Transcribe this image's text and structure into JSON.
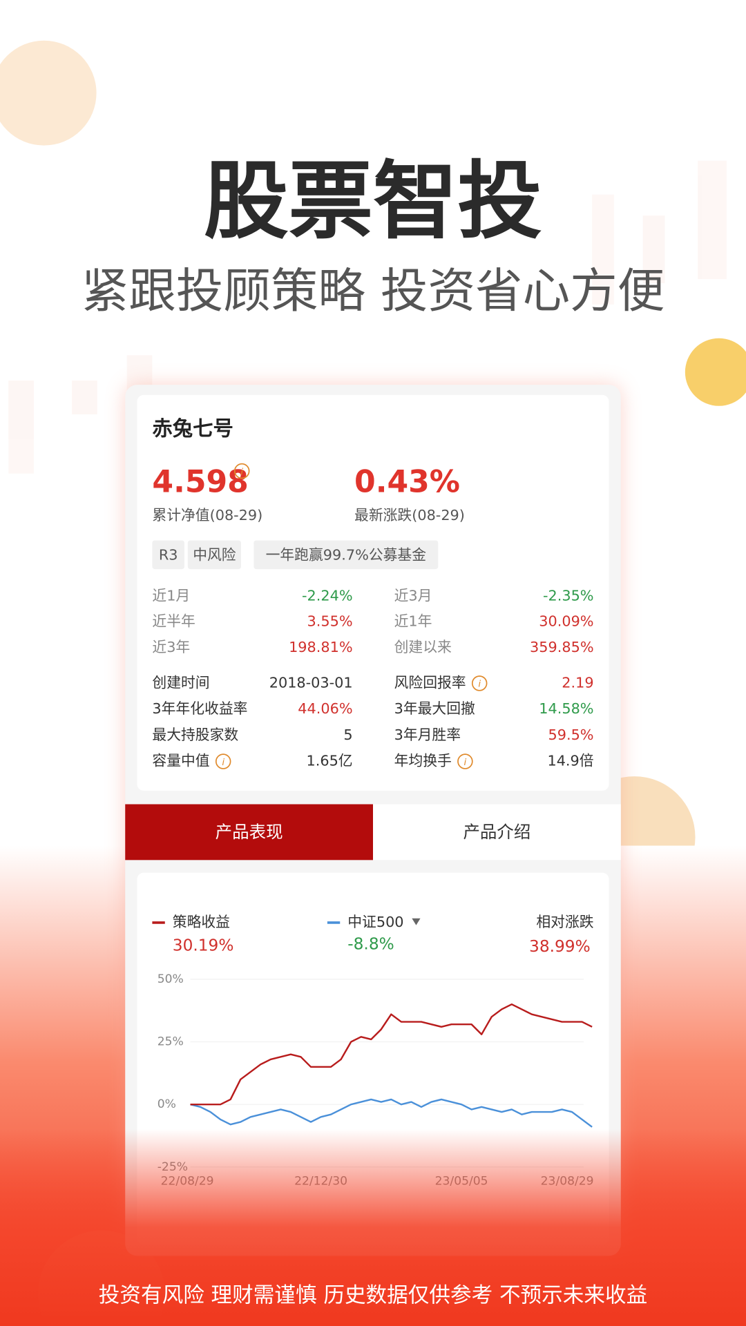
{
  "header": {
    "title": "股票智投",
    "subtitle": "紧跟投顾策略 投资省心方便"
  },
  "product": {
    "name": "赤兔七号",
    "nav": "4.598",
    "nav_label": "累计净值(08-29)",
    "change": "0.43%",
    "change_label": "最新涨跌(08-29)",
    "tags": [
      "R3",
      "中风险",
      "一年跑赢99.7%公募基金"
    ]
  },
  "returns": [
    {
      "label": "近1月",
      "value": "-2.24%",
      "color": "#2e9a4a"
    },
    {
      "label": "近3月",
      "value": "-2.35%",
      "color": "#2e9a4a"
    },
    {
      "label": "近半年",
      "value": "3.55%",
      "color": "#d0302c"
    },
    {
      "label": "近1年",
      "value": "30.09%",
      "color": "#d0302c"
    },
    {
      "label": "近3年",
      "value": "198.81%",
      "color": "#d0302c"
    },
    {
      "label": "创建以来",
      "value": "359.85%",
      "color": "#d0302c"
    }
  ],
  "details": [
    {
      "label": "创建时间",
      "value": "2018-03-01",
      "color": "#333333",
      "info": false
    },
    {
      "label": "风险回报率",
      "value": "2.19",
      "color": "#d0302c",
      "info": true
    },
    {
      "label": "3年年化收益率",
      "value": "44.06%",
      "color": "#d0302c",
      "info": false
    },
    {
      "label": "3年最大回撤",
      "value": "14.58%",
      "color": "#2e9a4a",
      "info": false
    },
    {
      "label": "最大持股家数",
      "value": "5",
      "color": "#333333",
      "info": false
    },
    {
      "label": "3年月胜率",
      "value": "59.5%",
      "color": "#d0302c",
      "info": false
    },
    {
      "label": "容量中值",
      "value": "1.65亿",
      "color": "#333333",
      "info": true
    },
    {
      "label": "年均换手",
      "value": "14.9倍",
      "color": "#333333",
      "info": true
    }
  ],
  "tabs": [
    "产品表现",
    "产品介绍"
  ],
  "chart_data": {
    "type": "line",
    "categories": [
      "22/08/29",
      null,
      null,
      null,
      null,
      null,
      null,
      null,
      null,
      null,
      null,
      null,
      null,
      "22/12/30",
      null,
      null,
      null,
      null,
      null,
      null,
      null,
      null,
      null,
      null,
      null,
      null,
      null,
      "23/05/05",
      null,
      null,
      null,
      null,
      null,
      null,
      null,
      null,
      null,
      null,
      null,
      null,
      "23/08/29"
    ],
    "series": [
      {
        "name": "策略收益",
        "latest": "30.19%",
        "latest_color": "#d0302c",
        "color": "#b81c1c",
        "values": [
          0,
          0,
          0,
          0,
          2,
          10,
          13,
          16,
          18,
          19,
          20,
          19,
          15,
          15,
          15,
          18,
          25,
          27,
          26,
          30,
          36,
          33,
          33,
          33,
          32,
          31,
          32,
          32,
          32,
          28,
          35,
          38,
          40,
          38,
          36,
          35,
          34,
          33,
          33,
          33,
          31
        ]
      },
      {
        "name": "中证500",
        "latest": "-8.8%",
        "latest_color": "#2e9a4a",
        "color": "#4a90d9",
        "values": [
          0,
          -1,
          -3,
          -6,
          -8,
          -7,
          -5,
          -4,
          -3,
          -2,
          -3,
          -5,
          -7,
          -5,
          -4,
          -2,
          0,
          1,
          2,
          1,
          2,
          0,
          1,
          -1,
          1,
          2,
          1,
          0,
          -2,
          -1,
          -2,
          -3,
          -2,
          -4,
          -3,
          -3,
          -3,
          -2,
          -3,
          -6,
          -9
        ]
      }
    ],
    "relative": {
      "name": "相对涨跌",
      "value": "38.99%"
    },
    "ylim": [
      -25,
      50
    ],
    "yticks": [
      {
        "value": 50,
        "label": "50%"
      },
      {
        "value": 25,
        "label": "25%"
      },
      {
        "value": 0,
        "label": "0%"
      },
      {
        "value": -25,
        "label": "-25%"
      }
    ],
    "grid": true
  },
  "footer": "投资有风险 理财需谨慎 历史数据仅供参考 不预示未来收益"
}
